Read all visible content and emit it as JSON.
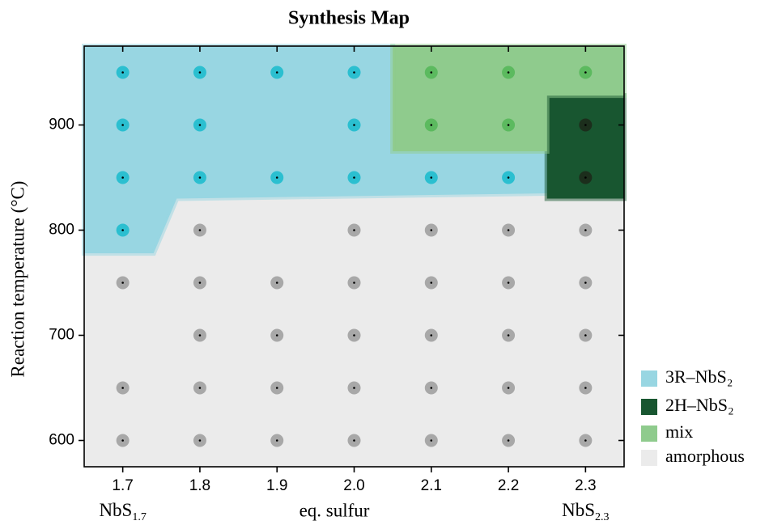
{
  "chart_data": {
    "type": "scatter",
    "title": "Synthesis Map",
    "x_label": "eq. sulfur",
    "y_label": "Reaction temperature (°C)",
    "xlim": [
      1.65,
      2.35
    ],
    "ylim": [
      575,
      975
    ],
    "xticks": [
      1.7,
      1.8,
      1.9,
      {
        "value": 2,
        "label": "2.0"
      },
      2.1,
      2.2,
      2.3
    ],
    "yticks": [
      600,
      700,
      800,
      900
    ],
    "annotations": [
      {
        "text": "NbS",
        "sub": "1.7",
        "x": 1.7
      },
      {
        "text": "NbS",
        "sub": "2.3",
        "x": 2.3
      }
    ],
    "background_series": 3,
    "series": [
      {
        "name": "3R–NbS₂",
        "color": "#98d6e2",
        "marker_color": "#2bbfd0",
        "x": [
          1.7,
          1.8,
          1.9,
          2.0,
          1.7,
          1.8,
          2.0,
          1.7,
          1.8,
          1.9,
          2.0,
          2.1,
          2.2,
          1.7
        ],
        "y": [
          950,
          950,
          950,
          950,
          900,
          900,
          900,
          850,
          850,
          850,
          850,
          850,
          850,
          800
        ],
        "region": {
          "x": [
            1.65,
            2.05,
            2.05,
            2.25,
            2.25,
            1.77,
            1.74,
            1.65
          ],
          "y": [
            975,
            975,
            875,
            875,
            835,
            830,
            778,
            778
          ]
        }
      },
      {
        "name": "2H–NbS₂",
        "color": "#185630",
        "marker_color": "#1c2e1c",
        "x": [
          2.3,
          2.3
        ],
        "y": [
          900,
          850
        ],
        "region": {
          "x": [
            2.25,
            2.35,
            2.35,
            2.25
          ],
          "y": [
            928,
            928,
            830,
            830
          ]
        }
      },
      {
        "name": "mix",
        "color": "#8fcb8d",
        "marker_color": "#5cba5f",
        "x": [
          2.1,
          2.2,
          2.3,
          2.1,
          2.2
        ],
        "y": [
          950,
          950,
          950,
          900,
          900
        ],
        "region": {
          "x": [
            2.05,
            2.35,
            2.35,
            2.25,
            2.25,
            2.05
          ],
          "y": [
            975,
            975,
            928,
            928,
            875,
            875
          ]
        }
      },
      {
        "name": "amorphous",
        "color": "#ebebeb",
        "marker_color": "#a8a8a8",
        "x": [
          1.8,
          2.0,
          2.1,
          2.2,
          2.3,
          1.7,
          1.8,
          1.9,
          2.0,
          2.1,
          2.2,
          2.3,
          1.8,
          1.9,
          2.0,
          2.1,
          2.2,
          2.3,
          1.7,
          1.8,
          1.9,
          2.0,
          2.1,
          2.2,
          2.3,
          1.7,
          1.8,
          1.9,
          2.0,
          2.1,
          2.2,
          2.3
        ],
        "y": [
          800,
          800,
          800,
          800,
          800,
          750,
          750,
          750,
          750,
          750,
          750,
          750,
          700,
          700,
          700,
          700,
          700,
          700,
          650,
          650,
          650,
          650,
          650,
          650,
          650,
          600,
          600,
          600,
          600,
          600,
          600,
          600
        ]
      }
    ]
  }
}
